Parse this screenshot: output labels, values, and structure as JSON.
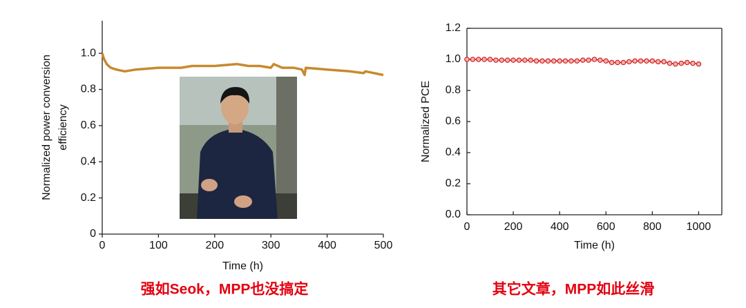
{
  "chart_data": [
    {
      "type": "line",
      "color": "#c68a2e",
      "ylabel": [
        "Normalized power conversion",
        "efficiency"
      ],
      "xlabel": "Time (h)",
      "caption": "强如Seok，MPP也没搞定",
      "x": [
        0,
        3,
        8,
        15,
        25,
        40,
        60,
        100,
        140,
        160,
        200,
        240,
        260,
        280,
        300,
        305,
        320,
        340,
        355,
        360,
        362,
        400,
        440,
        465,
        468,
        500
      ],
      "values": [
        1.0,
        0.97,
        0.94,
        0.92,
        0.91,
        0.9,
        0.91,
        0.92,
        0.92,
        0.93,
        0.93,
        0.94,
        0.93,
        0.93,
        0.92,
        0.94,
        0.92,
        0.92,
        0.91,
        0.88,
        0.92,
        0.91,
        0.9,
        0.89,
        0.9,
        0.88
      ],
      "xlim": [
        0,
        500
      ],
      "ylim": [
        0,
        1.18
      ],
      "xticks": [
        0,
        100,
        200,
        300,
        400,
        500
      ],
      "yticks": [
        0,
        0.2,
        0.4,
        0.6,
        0.8,
        {
          "value": 1,
          "label": "1.0"
        }
      ],
      "frame": false
    },
    {
      "type": "line",
      "marker": "circle",
      "color": "#d11a1a",
      "ylabel": "Normalized PCE",
      "xlabel": "Time (h)",
      "caption": "其它文章，MPP如此丝滑",
      "x": [
        0,
        25,
        50,
        75,
        100,
        125,
        150,
        175,
        200,
        225,
        250,
        275,
        300,
        325,
        350,
        375,
        400,
        425,
        450,
        475,
        500,
        525,
        550,
        575,
        600,
        625,
        650,
        675,
        700,
        725,
        750,
        775,
        800,
        825,
        850,
        875,
        900,
        925,
        950,
        975,
        1000
      ],
      "values": [
        1.0,
        1.0,
        1.0,
        1.0,
        1.0,
        0.995,
        0.995,
        0.995,
        0.995,
        0.995,
        0.995,
        0.995,
        0.99,
        0.99,
        0.99,
        0.99,
        0.99,
        0.99,
        0.99,
        0.99,
        0.995,
        0.995,
        1.0,
        0.995,
        0.99,
        0.98,
        0.98,
        0.98,
        0.985,
        0.99,
        0.99,
        0.99,
        0.99,
        0.985,
        0.985,
        0.975,
        0.97,
        0.975,
        0.98,
        0.975,
        0.97
      ],
      "xlim": [
        0,
        1100
      ],
      "ylim": [
        0,
        1.2
      ],
      "xticks": [
        0,
        200,
        400,
        600,
        800,
        1000
      ],
      "yticks": [
        {
          "value": 0,
          "label": "0.0"
        },
        0.2,
        0.4,
        0.6,
        0.8,
        {
          "value": 1,
          "label": "1.0"
        },
        1.2
      ],
      "frame": true
    }
  ]
}
